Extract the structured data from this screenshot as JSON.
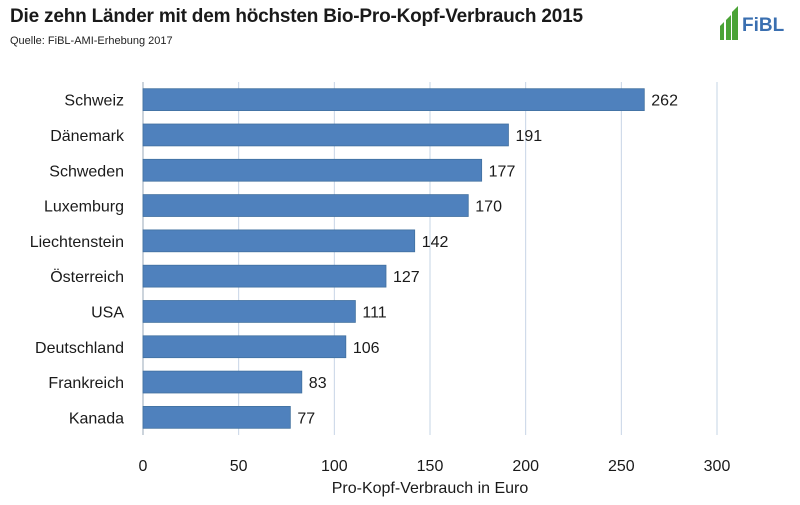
{
  "header": {
    "title": "Die zehn Länder mit dem höchsten Bio-Pro-Kopf-Verbrauch 2015",
    "source": "Quelle: FiBL-AMI-Erhebung 2017",
    "logo_text": "FiBL"
  },
  "colors": {
    "bar": "#4f81bd",
    "bar_edge": "#41709f",
    "grid": "#c6d4e6",
    "logo": "#3a6fb0",
    "logo_leaf": "#4aa336"
  },
  "chart_data": {
    "type": "bar",
    "orientation": "horizontal",
    "title": "Die zehn Länder mit dem höchsten Bio-Pro-Kopf-Verbrauch 2015",
    "xlabel": "Pro-Kopf-Verbrauch in Euro",
    "ylabel": "",
    "xlim": [
      0,
      300
    ],
    "xticks": [
      0,
      50,
      100,
      150,
      200,
      250,
      300
    ],
    "grid": true,
    "legend": "none",
    "categories": [
      "Schweiz",
      "Dänemark",
      "Schweden",
      "Luxemburg",
      "Liechtenstein",
      "Österreich",
      "USA",
      "Deutschland",
      "Frankreich",
      "Kanada"
    ],
    "values": [
      262,
      191,
      177,
      170,
      142,
      127,
      111,
      106,
      83,
      77
    ]
  }
}
